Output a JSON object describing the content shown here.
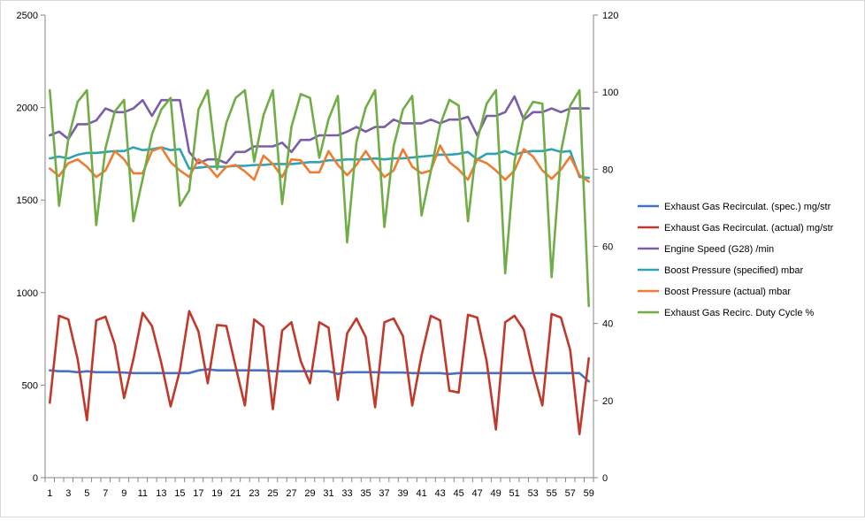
{
  "chart_data": {
    "type": "line",
    "x": [
      1,
      2,
      3,
      4,
      5,
      6,
      7,
      8,
      9,
      10,
      11,
      12,
      13,
      14,
      15,
      16,
      17,
      18,
      19,
      20,
      21,
      22,
      23,
      24,
      25,
      26,
      27,
      28,
      29,
      30,
      31,
      32,
      33,
      34,
      35,
      36,
      37,
      38,
      39,
      40,
      41,
      42,
      43,
      44,
      45,
      46,
      47,
      48,
      49,
      50,
      51,
      52,
      53,
      54,
      55,
      56,
      57,
      58,
      59
    ],
    "x_tick_labels": [
      "1",
      "3",
      "5",
      "7",
      "9",
      "11",
      "13",
      "15",
      "17",
      "19",
      "21",
      "23",
      "25",
      "27",
      "29",
      "31",
      "33",
      "35",
      "37",
      "39",
      "41",
      "43",
      "45",
      "47",
      "49",
      "51",
      "53",
      "55",
      "57",
      "59"
    ],
    "ylim": [
      0,
      2500
    ],
    "y_ticks": [
      "0",
      "500",
      "1000",
      "1500",
      "2000",
      "2500"
    ],
    "y2lim": [
      0,
      120
    ],
    "y2_ticks": [
      "0",
      "20",
      "40",
      "60",
      "80",
      "100",
      "120"
    ],
    "grid": false,
    "legend_position": "right",
    "series": [
      {
        "name": "Exhaust Gas Recirculat. (spec.)  mg/str",
        "color": "#4472c4",
        "axis": "left",
        "values": [
          580,
          575,
          575,
          570,
          575,
          570,
          570,
          570,
          568,
          565,
          565,
          565,
          565,
          565,
          565,
          565,
          580,
          585,
          580,
          580,
          580,
          580,
          580,
          580,
          575,
          575,
          575,
          575,
          575,
          575,
          575,
          560,
          570,
          570,
          570,
          570,
          568,
          568,
          568,
          565,
          565,
          565,
          565,
          560,
          565,
          565,
          565,
          565,
          565,
          565,
          565,
          565,
          565,
          565,
          565,
          565,
          565,
          565,
          520
        ]
      },
      {
        "name": "Exhaust Gas Recirculat. (actual)  mg/str",
        "color": "#c0392b",
        "axis": "left",
        "values": [
          405,
          875,
          855,
          640,
          310,
          850,
          870,
          720,
          430,
          640,
          890,
          820,
          620,
          385,
          580,
          900,
          790,
          510,
          825,
          820,
          600,
          390,
          855,
          815,
          370,
          795,
          840,
          630,
          510,
          840,
          810,
          420,
          780,
          860,
          760,
          380,
          840,
          860,
          765,
          390,
          660,
          875,
          850,
          470,
          460,
          880,
          865,
          630,
          260,
          840,
          875,
          800,
          575,
          390,
          885,
          865,
          690,
          235,
          645
        ]
      },
      {
        "name": "Engine Speed (G28)  /min",
        "color": "#7b5ea7",
        "axis": "left",
        "values": [
          1850,
          1870,
          1830,
          1910,
          1910,
          1930,
          1995,
          1975,
          1975,
          1995,
          2040,
          1955,
          2040,
          2040,
          2040,
          1760,
          1700,
          1720,
          1720,
          1700,
          1760,
          1760,
          1790,
          1790,
          1790,
          1810,
          1760,
          1825,
          1825,
          1850,
          1850,
          1850,
          1870,
          1895,
          1870,
          1895,
          1895,
          1935,
          1915,
          1915,
          1915,
          1935,
          1915,
          1935,
          1935,
          1950,
          1850,
          1955,
          1955,
          1975,
          2060,
          1935,
          1975,
          1975,
          1995,
          1975,
          1995,
          1995,
          1995
        ]
      },
      {
        "name": "Boost Pressure (specified)  mbar",
        "color": "#31a2b5",
        "axis": "left",
        "values": [
          1725,
          1735,
          1725,
          1745,
          1755,
          1755,
          1760,
          1765,
          1765,
          1785,
          1770,
          1775,
          1785,
          1770,
          1775,
          1670,
          1675,
          1680,
          1680,
          1680,
          1685,
          1685,
          1690,
          1690,
          1695,
          1695,
          1695,
          1700,
          1705,
          1705,
          1715,
          1715,
          1720,
          1720,
          1720,
          1725,
          1720,
          1725,
          1725,
          1730,
          1735,
          1740,
          1745,
          1745,
          1750,
          1760,
          1720,
          1750,
          1750,
          1765,
          1745,
          1760,
          1765,
          1765,
          1775,
          1760,
          1765,
          1625,
          1620
        ]
      },
      {
        "name": "Boost Pressure (actual)  mbar",
        "color": "#ed7d31",
        "axis": "left",
        "values": [
          1670,
          1630,
          1700,
          1720,
          1680,
          1625,
          1660,
          1765,
          1720,
          1645,
          1645,
          1765,
          1785,
          1705,
          1660,
          1625,
          1720,
          1685,
          1625,
          1680,
          1690,
          1655,
          1610,
          1740,
          1695,
          1625,
          1720,
          1715,
          1650,
          1650,
          1765,
          1690,
          1635,
          1690,
          1765,
          1690,
          1625,
          1660,
          1775,
          1680,
          1645,
          1660,
          1795,
          1705,
          1665,
          1610,
          1720,
          1700,
          1660,
          1610,
          1660,
          1775,
          1735,
          1660,
          1615,
          1665,
          1735,
          1635,
          1600
        ]
      },
      {
        "name": "Exhaust Gas Recirc. Duty Cycle  %",
        "color": "#70ad47",
        "axis": "right",
        "values": [
          100.5,
          70.5,
          88,
          97.5,
          100.5,
          65.5,
          85.5,
          95,
          98,
          66.5,
          77.5,
          89,
          95.5,
          98.5,
          70.5,
          74.5,
          95.5,
          100.5,
          80,
          92,
          98.5,
          100.5,
          82,
          94,
          100.5,
          71,
          91,
          99.5,
          98.5,
          83,
          93,
          99,
          61,
          87,
          96,
          100.5,
          65,
          86,
          95.5,
          99,
          68,
          79.5,
          91.5,
          98,
          96.5,
          66.5,
          87.5,
          97,
          100.5,
          53,
          82,
          93.5,
          97.5,
          97,
          52,
          84.5,
          96.5,
          100.5,
          44.5
        ]
      }
    ]
  }
}
